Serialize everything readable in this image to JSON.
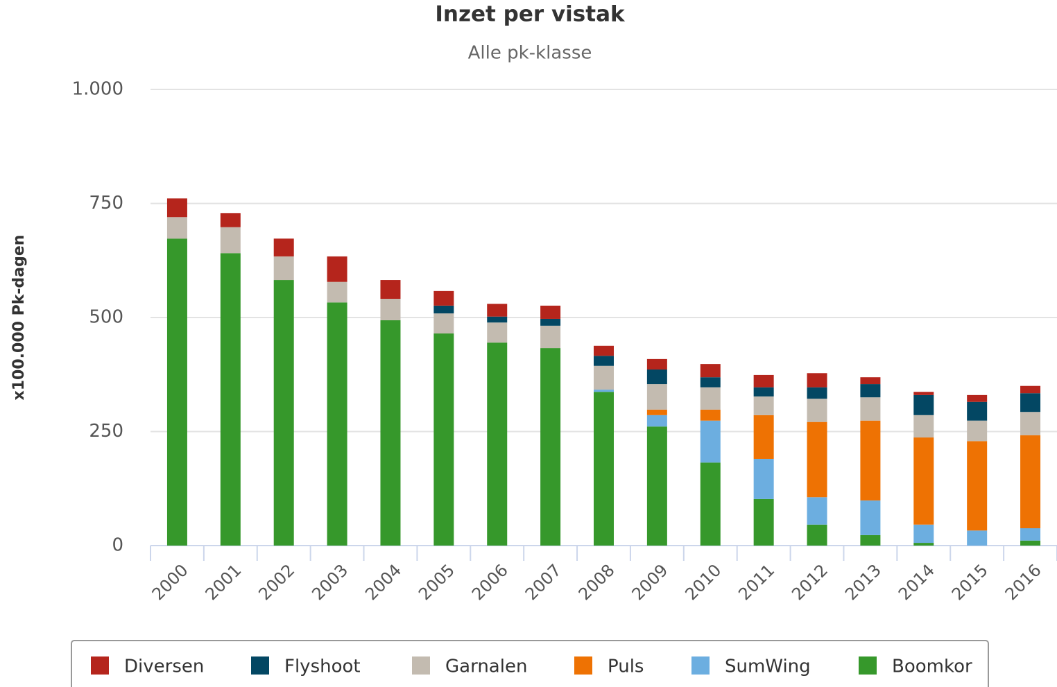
{
  "chart_data": {
    "type": "stacked_bar",
    "title": "Inzet per vistak",
    "subtitle": "Alle pk-klasse",
    "y_label": "x100.000 Pk-dagen",
    "categories": [
      "2000",
      "2001",
      "2002",
      "2003",
      "2004",
      "2005",
      "2006",
      "2007",
      "2008",
      "2009",
      "2010",
      "2011",
      "2012",
      "2013",
      "2014",
      "2015",
      "2016"
    ],
    "series": [
      {
        "name": "Boomkor",
        "color": "#36982b",
        "values": [
          673,
          641,
          582,
          533,
          494,
          465,
          445,
          433,
          337,
          261,
          182,
          102,
          46,
          23,
          6,
          0,
          11
        ]
      },
      {
        "name": "SumWing",
        "color": "#6caee0",
        "values": [
          0,
          0,
          0,
          0,
          0,
          0,
          0,
          0,
          5,
          25,
          92,
          88,
          60,
          76,
          40,
          33,
          27
        ]
      },
      {
        "name": "Puls",
        "color": "#ee7203",
        "values": [
          0,
          0,
          0,
          0,
          0,
          0,
          0,
          0,
          0,
          12,
          24,
          96,
          165,
          175,
          191,
          196,
          204
        ]
      },
      {
        "name": "Garnalen",
        "color": "#c3bbb0",
        "values": [
          47,
          57,
          52,
          45,
          47,
          44,
          44,
          49,
          52,
          56,
          49,
          41,
          51,
          51,
          49,
          45,
          51
        ]
      },
      {
        "name": "Flyshoot",
        "color": "#034763",
        "values": [
          0,
          0,
          0,
          0,
          0,
          17,
          13,
          15,
          22,
          32,
          22,
          20,
          25,
          29,
          44,
          41,
          41
        ]
      },
      {
        "name": "Diversen",
        "color": "#b5251c",
        "values": [
          41,
          31,
          39,
          56,
          41,
          32,
          28,
          29,
          22,
          23,
          29,
          27,
          31,
          15,
          7,
          15,
          16
        ]
      }
    ],
    "ylim": [
      0,
      1000
    ],
    "yticks": [
      0,
      250,
      500,
      750,
      {
        "value": 1000,
        "label": "1.000"
      }
    ],
    "grid": true,
    "legend": "bottom"
  }
}
